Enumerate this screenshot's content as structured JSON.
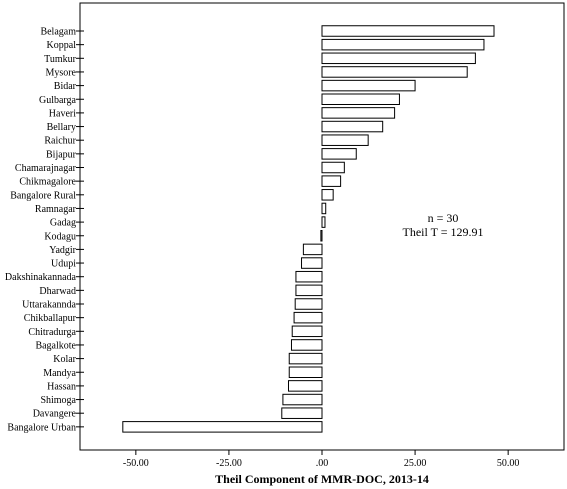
{
  "chart_data": {
    "type": "bar",
    "orientation": "horizontal",
    "xlabel": "Theil Component of MMR-DOC, 2013-14",
    "ylabel": "",
    "xlim": [
      -65,
      65
    ],
    "xticks": [
      -50,
      -25,
      0,
      25,
      50
    ],
    "xtick_labels": [
      "-50.00",
      "-25.00",
      ".00",
      "25.00",
      "50.00"
    ],
    "grid": false,
    "categories": [
      "Belagam",
      "Koppal",
      "Tumkur",
      "Mysore",
      "Bidar",
      "Gulbarga",
      "Haveri",
      "Bellary",
      "Raichur",
      "Bijapur",
      "Chamarajnagar",
      "Chikmagalore",
      "Bangalore Rural",
      "Ramnagar",
      "Gadag",
      "Kodagu",
      "Yadgir",
      "Udupi",
      "Dakshinakannada",
      "Dharwad",
      "Uttarakannda",
      "Chikballapur",
      "Chitradurga",
      "Bagalkote",
      "Kolar",
      "Mandya",
      "Hassan",
      "Shimoga",
      "Davangere",
      "Bangalore Urban"
    ],
    "values": [
      46.2,
      43.5,
      41.2,
      39.0,
      25.0,
      20.8,
      19.5,
      16.3,
      12.4,
      9.2,
      6.0,
      5.0,
      3.0,
      1.0,
      0.8,
      -0.3,
      -5.0,
      -5.5,
      -7.0,
      -7.0,
      -7.2,
      -7.5,
      -8.0,
      -8.2,
      -8.8,
      -8.8,
      -9.0,
      -10.5,
      -10.8,
      -53.5
    ],
    "annotations": [
      "n = 30",
      "Theil T = 129.91"
    ]
  },
  "colors": {
    "bar_fill": "#ffffff",
    "bar_stroke": "#000000",
    "axis": "#000000"
  }
}
